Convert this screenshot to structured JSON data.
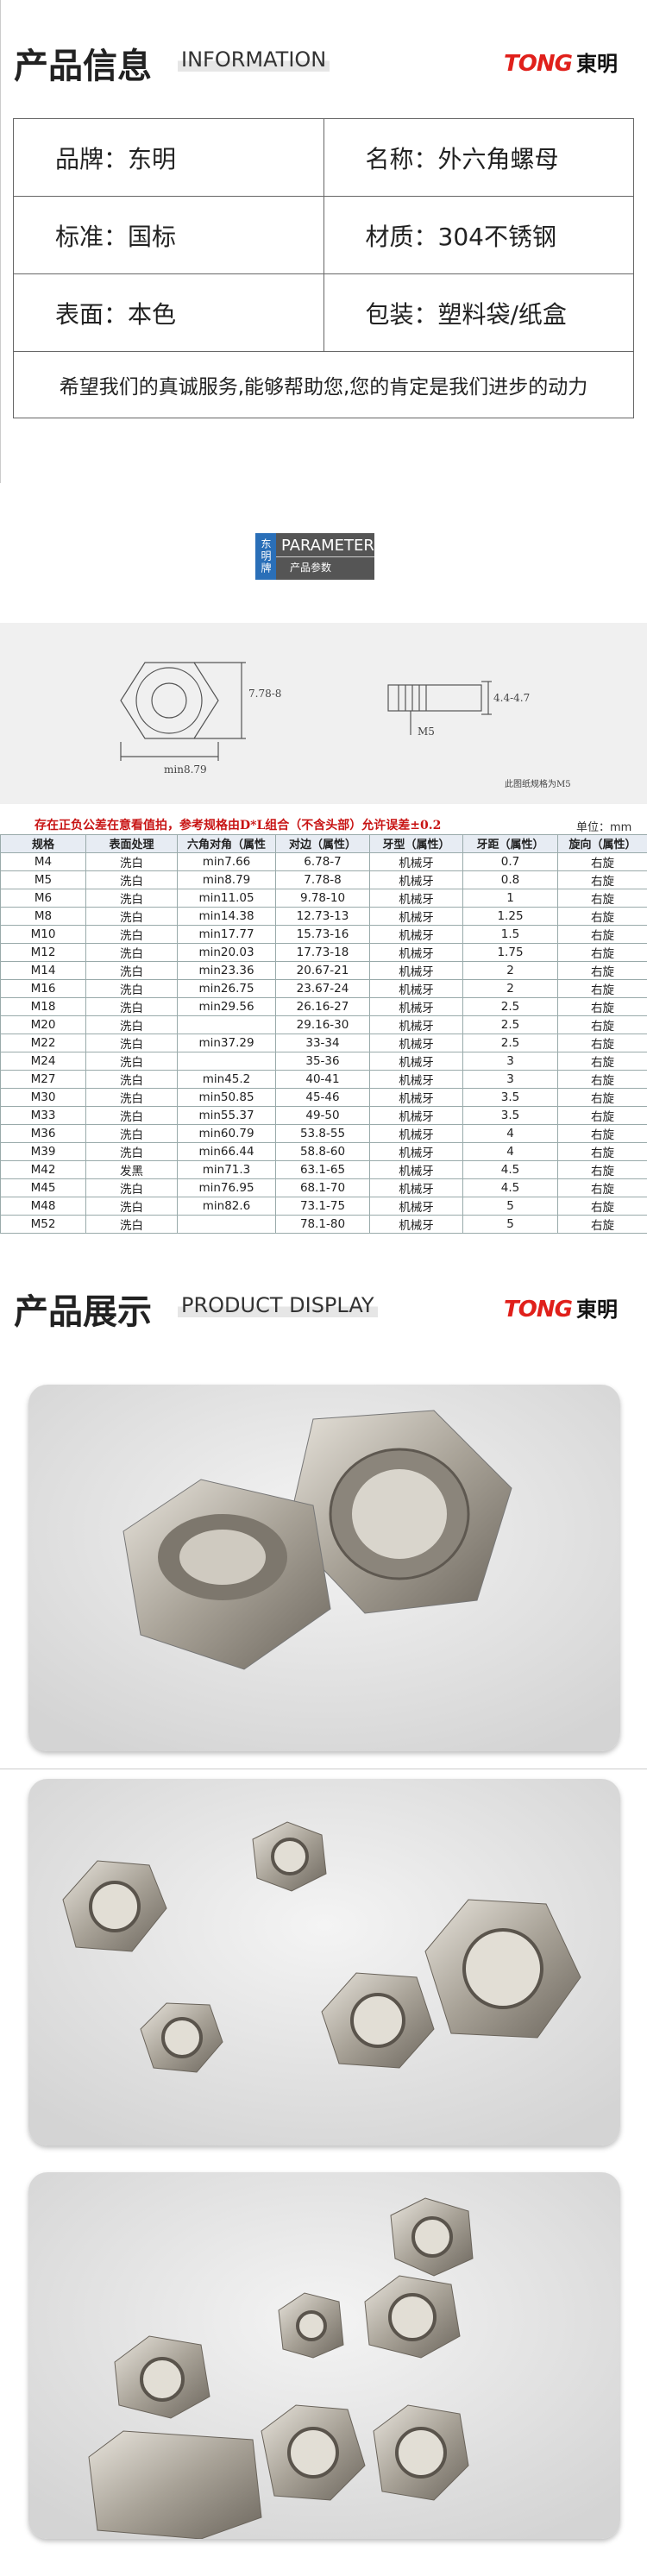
{
  "header": {
    "title": "产品信息",
    "subtitle": "INFORMATION",
    "brand_logo": "TONG",
    "brand_name": "東明"
  },
  "info": {
    "rows": [
      [
        "品牌：东明",
        "名称：外六角螺母"
      ],
      [
        "标准：国标",
        "材质：304不锈钢"
      ],
      [
        "表面：本色",
        "包装：塑料袋/纸盒"
      ]
    ],
    "slogan": "希望我们的真诚服务,能够帮助您,您的肯定是我们进步的动力"
  },
  "parameter_badge": {
    "brand": "东明牌",
    "title": "PARAMETER",
    "subtitle": "产品参数"
  },
  "diagram": {
    "across_flats": "7.78-8",
    "across_corners": "min8.79",
    "thickness": "4.4-4.7",
    "thread": "M5",
    "note": "此图纸规格为M5"
  },
  "spec_table": {
    "notice": "存在正负公差在意看值拍，参考规格由D*L组合（不含头部）允许误差±0.2",
    "unit": "单位：mm",
    "columns": [
      "规格",
      "表面处理",
      "六角对角（属性",
      "对边（属性）",
      "牙型（属性）",
      "牙距（属性）",
      "旋向（属性）"
    ],
    "rows": [
      [
        "M4",
        "洗白",
        "min7.66",
        "6.78-7",
        "机械牙",
        "0.7",
        "右旋"
      ],
      [
        "M5",
        "洗白",
        "min8.79",
        "7.78-8",
        "机械牙",
        "0.8",
        "右旋"
      ],
      [
        "M6",
        "洗白",
        "min11.05",
        "9.78-10",
        "机械牙",
        "1",
        "右旋"
      ],
      [
        "M8",
        "洗白",
        "min14.38",
        "12.73-13",
        "机械牙",
        "1.25",
        "右旋"
      ],
      [
        "M10",
        "洗白",
        "min17.77",
        "15.73-16",
        "机械牙",
        "1.5",
        "右旋"
      ],
      [
        "M12",
        "洗白",
        "min20.03",
        "17.73-18",
        "机械牙",
        "1.75",
        "右旋"
      ],
      [
        "M14",
        "洗白",
        "min23.36",
        "20.67-21",
        "机械牙",
        "2",
        "右旋"
      ],
      [
        "M16",
        "洗白",
        "min26.75",
        "23.67-24",
        "机械牙",
        "2",
        "右旋"
      ],
      [
        "M18",
        "洗白",
        "min29.56",
        "26.16-27",
        "机械牙",
        "2.5",
        "右旋"
      ],
      [
        "M20",
        "洗白",
        null,
        "29.16-30",
        "机械牙",
        "2.5",
        "右旋"
      ],
      [
        "M22",
        "洗白",
        "min37.29",
        "33-34",
        "机械牙",
        "2.5",
        "右旋"
      ],
      [
        "M24",
        "洗白",
        null,
        "35-36",
        "机械牙",
        "3",
        "右旋"
      ],
      [
        "M27",
        "洗白",
        "min45.2",
        "40-41",
        "机械牙",
        "3",
        "右旋"
      ],
      [
        "M30",
        "洗白",
        "min50.85",
        "45-46",
        "机械牙",
        "3.5",
        "右旋"
      ],
      [
        "M33",
        "洗白",
        "min55.37",
        "49-50",
        "机械牙",
        "3.5",
        "右旋"
      ],
      [
        "M36",
        "洗白",
        "min60.79",
        "53.8-55",
        "机械牙",
        "4",
        "右旋"
      ],
      [
        "M39",
        "洗白",
        "min66.44",
        "58.8-60",
        "机械牙",
        "4",
        "右旋"
      ],
      [
        "M42",
        "发黑",
        "min71.3",
        "63.1-65",
        "机械牙",
        "4.5",
        "右旋"
      ],
      [
        "M45",
        "洗白",
        "min76.95",
        "68.1-70",
        "机械牙",
        "4.5",
        "右旋"
      ],
      [
        "M48",
        "洗白",
        "min82.6",
        "73.1-75",
        "机械牙",
        "5",
        "右旋"
      ],
      [
        "M52",
        "洗白",
        null,
        "78.1-80",
        "机械牙",
        "5",
        "右旋"
      ]
    ]
  },
  "display": {
    "title": "产品展示",
    "subtitle": "PRODUCT DISPLAY",
    "brand_logo": "TONG",
    "brand_name": "東明"
  }
}
